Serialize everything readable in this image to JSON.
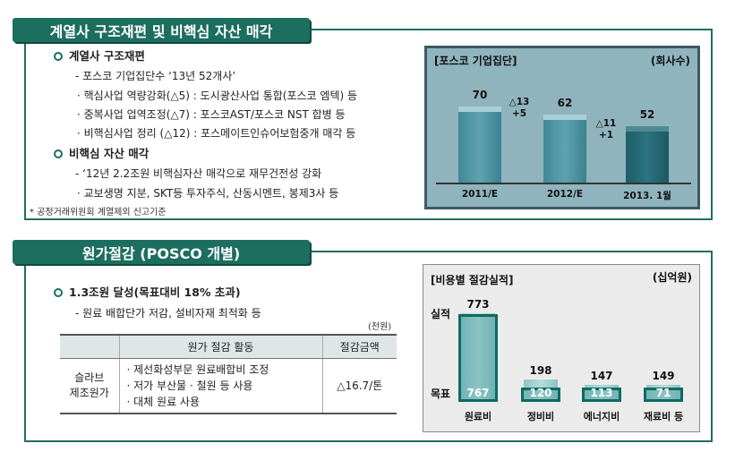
{
  "section1": {
    "title": "계열사 구조재편 및 비핵심 자산 매각",
    "h_restructure": "계열사 구조재편",
    "line1": "- 포스코 기업집단수 ‘13년 52개사’",
    "line2": "· 핵심사업 역량강화(△5) : 도시광산사업 통합(포스코 엠텍) 등",
    "line3": "· 중복사업 업역조정(△7) : 포스코AST/포스코 NST 합병 등",
    "line4": "· 비핵심사업 정리 (△12) : 포스메이트인슈어보험중개 매각 등",
    "h_sale": "비핵심 자산 매각",
    "line5": "- ‘12년 2.2조원 비핵심자산 매각으로 재무건전성 강화",
    "line6": "· 교보생명 지분, SKT등 투자주식, 산동시멘트, 봉제3사 등",
    "footnote": "* 공정거래위원회 계열제외 신고기준"
  },
  "chart1": {
    "title": "[포스코 기업집단]",
    "unit": "(회사수)",
    "delta1": [
      "△13",
      "+5"
    ],
    "delta2": [
      "△11",
      "+1"
    ]
  },
  "chart_data": [
    {
      "type": "bar",
      "title": "[포스코 기업집단]",
      "unit": "(회사수)",
      "categories": [
        "2011/E",
        "2012/E",
        "2013. 1월"
      ],
      "values": [
        70,
        62,
        52
      ],
      "colors": [
        "#4a95a0",
        "#4a95a0",
        "#1f6170"
      ],
      "ylim": [
        0,
        80
      ]
    },
    {
      "type": "bar",
      "title": "[비용별 절감실적]",
      "unit": "(십억원)",
      "categories": [
        "원료비",
        "정비비",
        "에너지비",
        "재료비 등"
      ],
      "series": [
        {
          "name": "실적",
          "values": [
            773,
            198,
            147,
            149
          ]
        },
        {
          "name": "목표",
          "values": [
            767,
            120,
            113,
            71
          ]
        }
      ]
    }
  ],
  "section2": {
    "title": "원가절감 (POSCO 개별)",
    "h_achieve": "1.3조원 달성(목표대비 18% 초과)",
    "line1": "- 원료 배합단가 저감, 설비자재 최적화 등",
    "table_unit": "(천원)",
    "table": {
      "col1": "원가 절감 활동",
      "col2": "절감금액",
      "row_label": "슬라브\n제조원가",
      "activities": [
        "· 제선화성부문 원료배합비 조정",
        "· 저가 부산물 · 철원 등 사용",
        "· 대체 원료 사용"
      ],
      "amount": "△16.7/톤"
    }
  },
  "chart2": {
    "title": "[비용별 절감실적]",
    "unit": "(십억원)",
    "label_actual": "실적",
    "label_target": "목표"
  }
}
